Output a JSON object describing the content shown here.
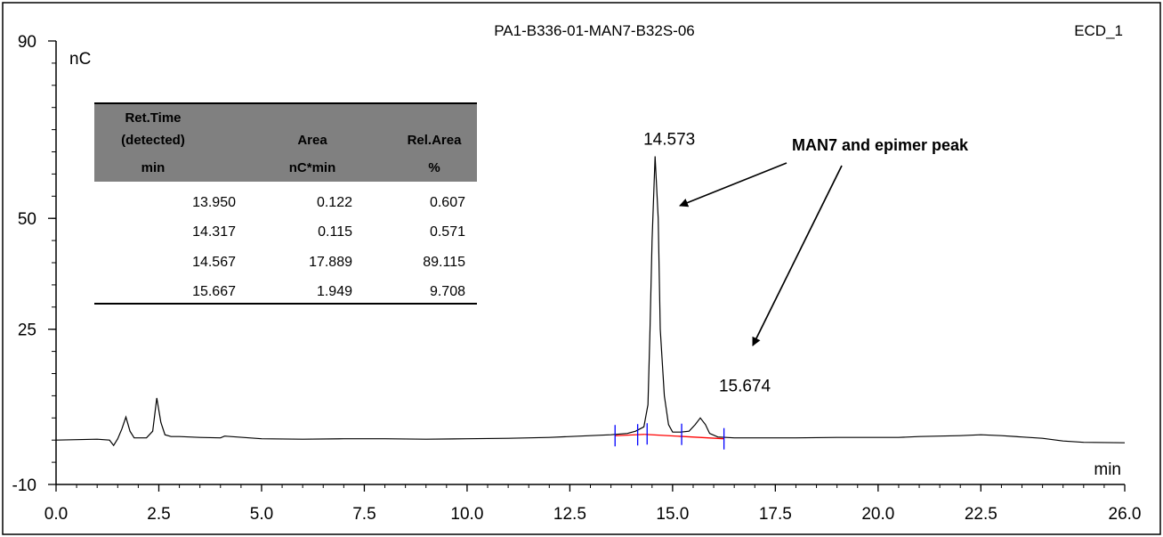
{
  "chart_data": {
    "type": "line",
    "title": "PA1-B336-01-MAN7-B32S-06",
    "channel": "ECD_1",
    "xlabel": "min",
    "ylabel": "nC",
    "xlim": [
      0.0,
      26.0
    ],
    "ylim": [
      -10,
      90
    ],
    "x_ticks": [
      0.0,
      2.5,
      5.0,
      7.5,
      10.0,
      12.5,
      15.0,
      17.5,
      20.0,
      22.5,
      26.0
    ],
    "x_tick_labels": [
      "0.0",
      "2.5",
      "5.0",
      "7.5",
      "10.0",
      "12.5",
      "15.0",
      "17.5",
      "20.0",
      "22.5",
      "26.0"
    ],
    "y_ticks": [
      -10,
      25,
      50,
      90
    ],
    "y_tick_labels": [
      "-10",
      "25",
      "50",
      "90"
    ],
    "grid": false,
    "series": [
      {
        "color": "#000000",
        "x": [
          0.0,
          0.5,
          1.0,
          1.3,
          1.4,
          1.5,
          1.6,
          1.7,
          1.8,
          1.9,
          2.0,
          2.2,
          2.35,
          2.45,
          2.55,
          2.65,
          2.8,
          3.0,
          3.5,
          4.0,
          4.1,
          5.0,
          6.0,
          7.0,
          8.0,
          9.0,
          10.0,
          11.0,
          12.0,
          13.0,
          13.5,
          13.9,
          14.1,
          14.3,
          14.4,
          14.45,
          14.5,
          14.573,
          14.65,
          14.7,
          14.8,
          14.9,
          15.0,
          15.2,
          15.4,
          15.55,
          15.674,
          15.8,
          15.9,
          16.1,
          16.5,
          17.0,
          18.0,
          19.0,
          20.0,
          20.5,
          21.0,
          21.5,
          22.0,
          22.5,
          23.0,
          23.5,
          24.0,
          24.5,
          25.0,
          26.0
        ],
        "y": [
          0.0,
          0.1,
          0.2,
          0.0,
          -1.2,
          0.3,
          2.5,
          5.2,
          2.0,
          0.5,
          0.5,
          0.5,
          2.0,
          9.5,
          4.0,
          1.2,
          0.8,
          0.8,
          0.6,
          0.5,
          0.9,
          0.3,
          0.2,
          0.3,
          0.3,
          0.2,
          0.3,
          0.4,
          0.6,
          1.0,
          1.2,
          1.5,
          2.0,
          3.0,
          8.0,
          25.0,
          45.0,
          64.0,
          50.0,
          25.0,
          10.0,
          3.5,
          1.8,
          1.8,
          2.0,
          3.5,
          5.0,
          3.5,
          1.5,
          0.7,
          0.5,
          0.5,
          0.5,
          0.6,
          0.6,
          0.6,
          0.8,
          0.9,
          1.0,
          1.2,
          1.0,
          0.7,
          0.4,
          -0.2,
          -0.5,
          -0.6
        ]
      }
    ],
    "baseline_segments": [
      {
        "color": "#ff0000",
        "x": [
          13.6,
          14.317
        ],
        "y": [
          1.0,
          1.3
        ]
      },
      {
        "color": "#ff0000",
        "x": [
          14.317,
          16.25
        ],
        "y": [
          1.3,
          0.3
        ]
      }
    ],
    "integration_markers": {
      "color": "#0000ff",
      "x": [
        13.6,
        14.15,
        14.38,
        15.22,
        16.25
      ],
      "y": [
        1.0,
        1.2,
        1.4,
        1.3,
        0.3
      ]
    },
    "peak_labels": [
      {
        "x": 14.573,
        "y": 64.0,
        "text": "14.573"
      },
      {
        "x": 15.674,
        "y": 5.0,
        "text": "15.674"
      }
    ],
    "annotations": [
      {
        "text": "MAN7 and epimer peak"
      }
    ],
    "table": {
      "headers": [
        [
          "Ret.Time",
          "(detected)",
          "min"
        ],
        [
          "",
          "Area",
          "nC*min"
        ],
        [
          "",
          "Rel.Area",
          "%"
        ]
      ],
      "rows": [
        [
          "13.950",
          "0.122",
          "0.607"
        ],
        [
          "14.317",
          "0.115",
          "0.571"
        ],
        [
          "14.567",
          "17.889",
          "89.115"
        ],
        [
          "15.667",
          "1.949",
          "9.708"
        ]
      ],
      "header_bg": "#808080"
    },
    "colors": {
      "trace": "#000000",
      "baseline": "#ff0000",
      "markers": "#0000ff",
      "table_header": "#808080"
    }
  }
}
